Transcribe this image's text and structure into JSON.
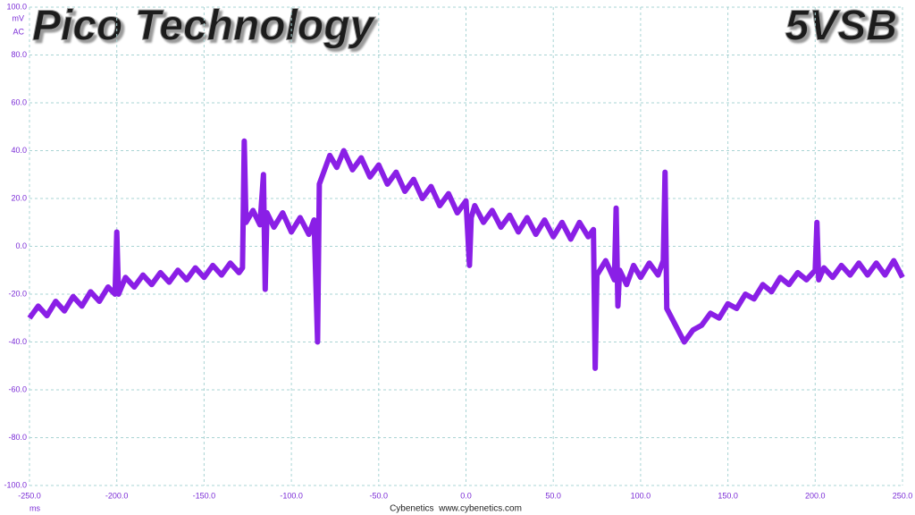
{
  "chart_data": {
    "type": "line",
    "title": "Pico Technology",
    "subtitle": "5VSB",
    "y_unit": "mV",
    "y_coupling": "AC",
    "x_unit": "ms",
    "footer": "Cybenetics  www.cybenetics.com",
    "color": "#8a1fe6",
    "grid": true,
    "xlim": [
      -250,
      250
    ],
    "ylim": [
      -100,
      100
    ],
    "xticks": [
      {
        "value": -250,
        "label": "-250.0"
      },
      {
        "value": -200,
        "label": "-200.0"
      },
      {
        "value": -150,
        "label": "-150.0"
      },
      {
        "value": -100,
        "label": "-100.0"
      },
      {
        "value": -50,
        "label": "-50.0"
      },
      {
        "value": 0,
        "label": "0.0"
      },
      {
        "value": 50,
        "label": "50.0"
      },
      {
        "value": 100,
        "label": "100.0"
      },
      {
        "value": 150,
        "label": "150.0"
      },
      {
        "value": 200,
        "label": "200.0"
      },
      {
        "value": 250,
        "label": "250.0"
      }
    ],
    "yticks": [
      {
        "value": 100,
        "label": "100.0"
      },
      {
        "value": 80,
        "label": "80.0"
      },
      {
        "value": 60,
        "label": "60.0"
      },
      {
        "value": 40,
        "label": "40.0"
      },
      {
        "value": 20,
        "label": "20.0"
      },
      {
        "value": 0,
        "label": "0.0"
      },
      {
        "value": -20,
        "label": "-20.0"
      },
      {
        "value": -40,
        "label": "-40.0"
      },
      {
        "value": -60,
        "label": "-60.0"
      },
      {
        "value": -80,
        "label": "-80.0"
      },
      {
        "value": -100,
        "label": "-100.0"
      }
    ],
    "x": [
      -250,
      -245,
      -240,
      -235,
      -230,
      -225,
      -220,
      -215,
      -210,
      -205,
      -201,
      -200,
      -199,
      -195,
      -190,
      -185,
      -180,
      -175,
      -170,
      -165,
      -160,
      -155,
      -150,
      -145,
      -140,
      -135,
      -130,
      -128,
      -127,
      -126,
      -122,
      -118,
      -116,
      -115,
      -114,
      -110,
      -105,
      -100,
      -95,
      -90,
      -87,
      -85,
      -84,
      -82,
      -78,
      -74,
      -70,
      -65,
      -60,
      -55,
      -50,
      -45,
      -40,
      -35,
      -30,
      -25,
      -20,
      -15,
      -10,
      -5,
      0,
      2,
      3,
      5,
      10,
      15,
      20,
      25,
      30,
      35,
      40,
      45,
      50,
      55,
      60,
      65,
      70,
      73,
      74,
      75,
      80,
      85,
      86,
      87,
      88,
      92,
      96,
      100,
      105,
      110,
      113,
      114,
      115,
      120,
      125,
      130,
      135,
      140,
      145,
      150,
      155,
      160,
      165,
      170,
      175,
      180,
      185,
      190,
      195,
      200,
      201,
      202,
      205,
      210,
      215,
      220,
      225,
      230,
      235,
      240,
      245,
      250
    ],
    "values": [
      -30,
      -25,
      -29,
      -23,
      -27,
      -21,
      -25,
      -19,
      -23,
      -17,
      -20,
      6,
      -20,
      -13,
      -17,
      -12,
      -16,
      -11,
      -15,
      -10,
      -14,
      -9,
      -13,
      -8,
      -12,
      -7,
      -11,
      -9,
      44,
      10,
      15,
      9,
      30,
      -18,
      14,
      8,
      14,
      6,
      12,
      5,
      11,
      -40,
      26,
      30,
      38,
      33,
      40,
      32,
      37,
      29,
      34,
      26,
      31,
      23,
      28,
      20,
      25,
      17,
      22,
      14,
      19,
      -8,
      12,
      17,
      10,
      15,
      8,
      13,
      6,
      12,
      5,
      11,
      4,
      10,
      3,
      10,
      4,
      7,
      -51,
      -12,
      -6,
      -14,
      16,
      -25,
      -10,
      -16,
      -8,
      -13,
      -7,
      -12,
      -6,
      31,
      -26,
      -33,
      -40,
      -35,
      -33,
      -28,
      -30,
      -24,
      -26,
      -20,
      -22,
      -16,
      -19,
      -13,
      -16,
      -11,
      -14,
      -10,
      10,
      -14,
      -9,
      -13,
      -8,
      -12,
      -7,
      -12,
      -7,
      -12,
      -6,
      -13
    ]
  }
}
